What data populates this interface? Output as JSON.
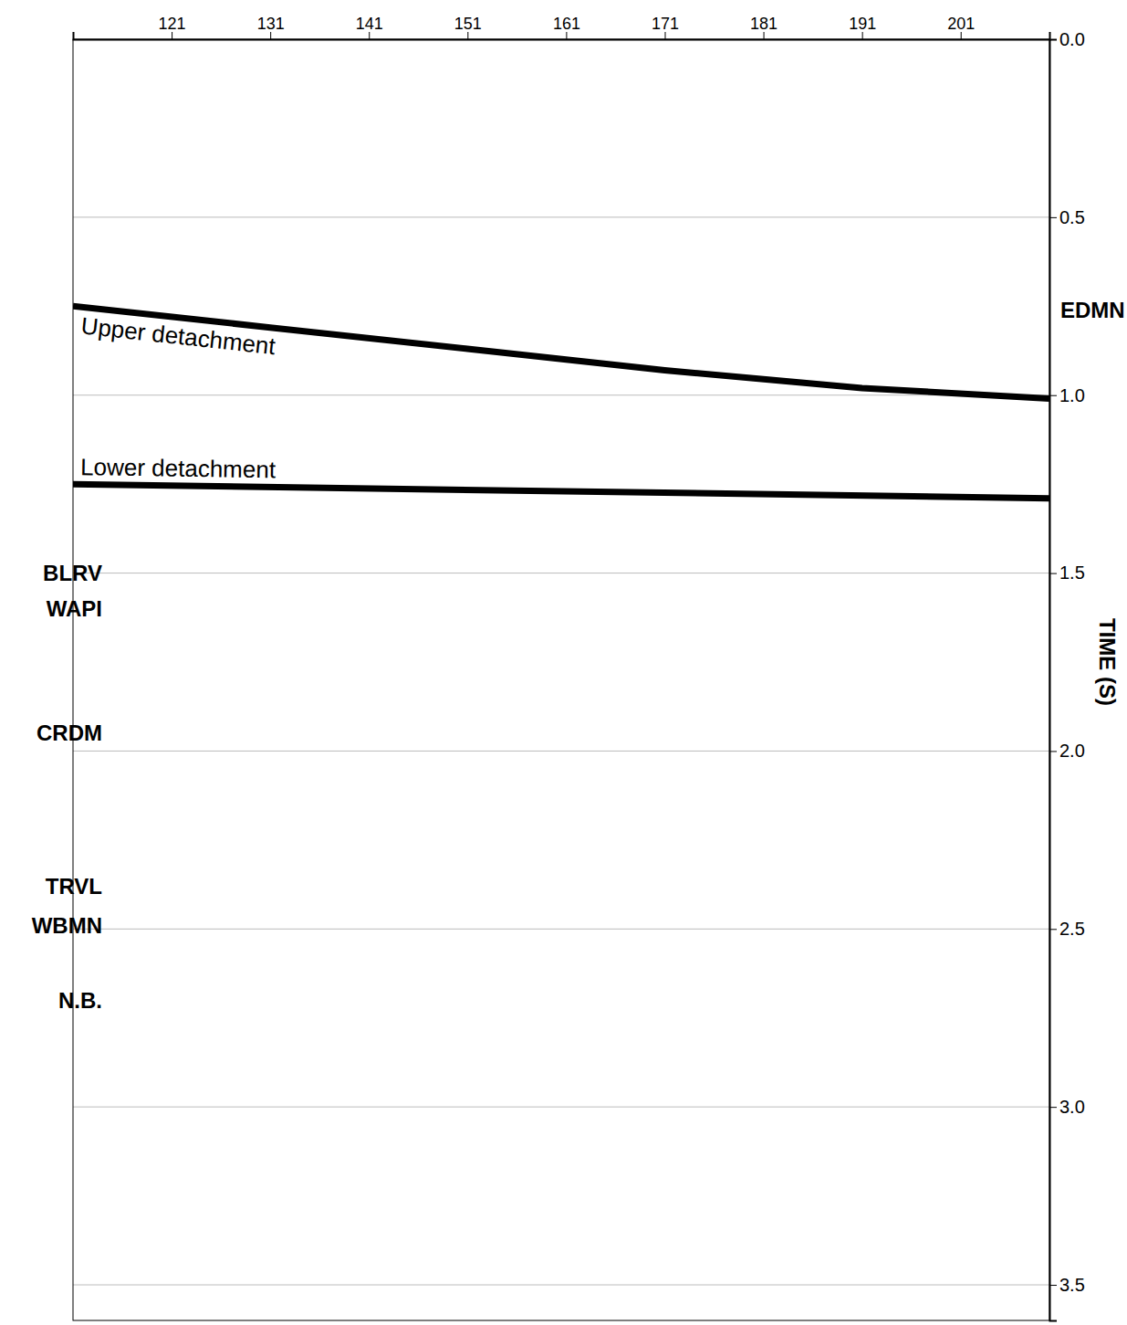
{
  "chart_data": {
    "type": "line",
    "y_label": "TIME (S)",
    "xlim": [
      111,
      210
    ],
    "xticks": [
      121,
      131,
      141,
      151,
      161,
      171,
      181,
      191,
      201
    ],
    "ylim": [
      0,
      3.6
    ],
    "yticks": [
      {
        "value": 0,
        "label": "0.0"
      },
      0.5,
      {
        "value": 1,
        "label": "1.0"
      },
      1.5,
      {
        "value": 2,
        "label": "2.0"
      },
      2.5,
      {
        "value": 3,
        "label": "3.0"
      },
      3.5
    ],
    "grid": true,
    "series": [
      {
        "name": "Upper detachment",
        "color": "#000000",
        "line_style": "solid",
        "x": [
          111,
          131,
          151,
          171,
          191,
          210
        ],
        "values": [
          0.75,
          0.81,
          0.87,
          0.93,
          0.98,
          1.01
        ]
      },
      {
        "name": "Lower detachment",
        "color": "#000000",
        "line_style": "solid",
        "x": [
          111,
          210
        ],
        "values": [
          1.25,
          1.29
        ]
      }
    ],
    "left_labels": [
      {
        "text": "BLRV",
        "y": 1.5
      },
      {
        "text": "WAPI",
        "y": 1.6
      },
      {
        "text": "CRDM",
        "y": 1.95
      },
      {
        "text": "TRVL",
        "y": 2.38
      },
      {
        "text": "WBMN",
        "y": 2.49
      },
      {
        "text": "N.B.",
        "y": 2.7
      }
    ],
    "right_labels": [
      {
        "text": "EDMN",
        "y": 0.76
      }
    ]
  }
}
